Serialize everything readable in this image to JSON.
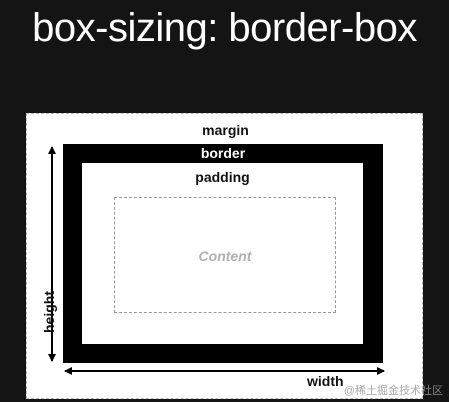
{
  "title": "box-sizing: border-box",
  "diagram": {
    "margin_label": "margin",
    "border_label": "border",
    "padding_label": "padding",
    "content_label": "Content",
    "height_label": "height",
    "width_label": "width"
  },
  "watermark": "@稀土掘金技术社区",
  "colors": {
    "background": "#141414",
    "margin_area": "#ffffff",
    "border_area": "#000000",
    "padding_area": "#ffffff",
    "content_text": "#b0b0b0"
  }
}
